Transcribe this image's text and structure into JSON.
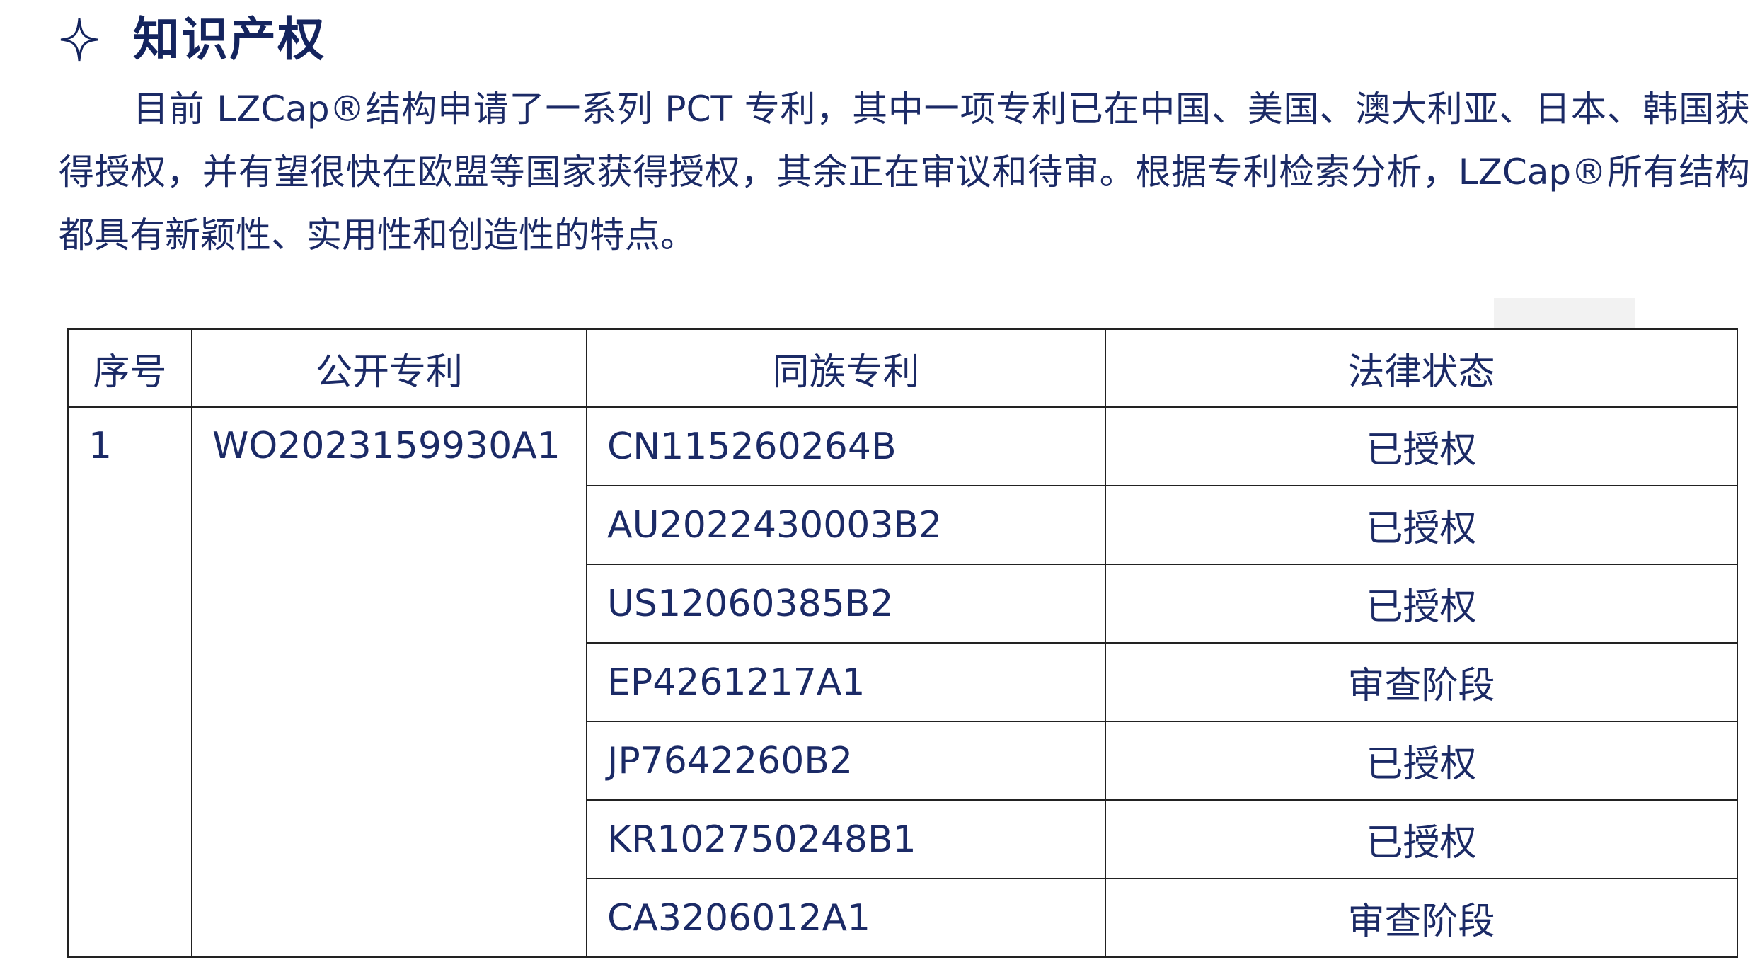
{
  "section": {
    "icon": "four-point-star-icon",
    "title": "知识产权"
  },
  "paragraph": {
    "lines": [
      "目前 LZCap®结构申请了一系列 PCT 专利，其中一项专利已在中国、美国、澳大利亚、日本、韩国获",
      "得授权，并有望很快在欧盟等国家获得授权，其余正在审议和待审。根据专利检索分析，LZCap®所有结构",
      "都具有新颖性、实用性和创造性的特点。"
    ]
  },
  "table": {
    "headers": [
      "序号",
      "公开专利",
      "同族专利",
      "法律状态"
    ],
    "index": "1",
    "publication": "WO2023159930A1",
    "rows": [
      {
        "family": "CN115260264B",
        "status": "已授权"
      },
      {
        "family": "AU2022430003B2",
        "status": "已授权"
      },
      {
        "family": "US12060385B2",
        "status": "已授权"
      },
      {
        "family": "EP4261217A1",
        "status": "审查阶段"
      },
      {
        "family": "JP7642260B2",
        "status": "已授权"
      },
      {
        "family": "KR102750248B1",
        "status": "已授权"
      },
      {
        "family": "CA3206012A1",
        "status": "审查阶段"
      }
    ]
  },
  "colors": {
    "text": "#1b2a66",
    "border": "#222222"
  }
}
